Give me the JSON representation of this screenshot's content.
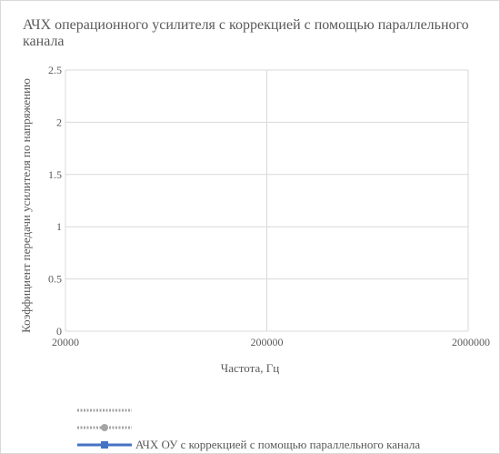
{
  "chart_data": {
    "type": "line",
    "title": "АЧХ операционного усилителя с коррекцией с помощью параллельного канала",
    "xlabel": "Частота, Гц",
    "ylabel": "Коэффициент передачи усилителя по напряжению",
    "x_scale": "log",
    "x_ticks": [
      "20000",
      "200000",
      "2000000"
    ],
    "xlim": [
      20000,
      2000000
    ],
    "y_ticks": [
      "0",
      "0.5",
      "1",
      "1.5",
      "2",
      "2.5"
    ],
    "ylim": [
      0,
      2.5
    ],
    "grid": true,
    "legend_position": "bottom",
    "series": [
      {
        "name": "",
        "color": "#a5a5a5",
        "style": "dotted",
        "marker": "none",
        "values": []
      },
      {
        "name": "",
        "color": "#a5a5a5",
        "style": "dotted",
        "marker": "circle",
        "values": []
      },
      {
        "name": "АЧХ ОУ с коррекцией с помощью параллельного канала",
        "color": "#4472c4",
        "style": "solid",
        "marker": "square",
        "values": []
      }
    ]
  }
}
